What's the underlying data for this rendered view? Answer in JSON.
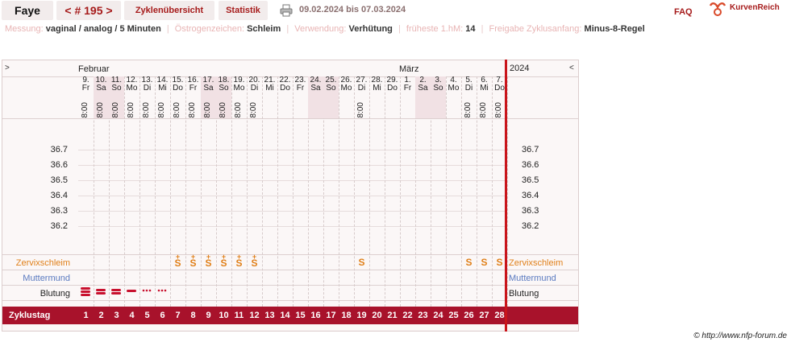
{
  "header": {
    "name": "Faye",
    "cycle_prev": "<",
    "cycle_label": "# 195",
    "cycle_next": ">",
    "menu": [
      "Zyklenübersicht",
      "Statistik"
    ],
    "date_range": "09.02.2024 bis 07.03.2024",
    "faq": "FAQ",
    "logo_text": "KurvenReich"
  },
  "settings": [
    {
      "label": "Messung:",
      "value": "vaginal / analog / 5 Minuten"
    },
    {
      "label": "Östrogenzeichen:",
      "value": "Schleim"
    },
    {
      "label": "Verwendung:",
      "value": "Verhütung"
    },
    {
      "label": "früheste 1.hM:",
      "value": "14"
    },
    {
      "label": "Freigabe Zyklusanfang:",
      "value": "Minus-8-Regel"
    }
  ],
  "chart": {
    "nav_left": ">",
    "nav_right": "<",
    "month1": "Februar",
    "month2": "März",
    "year": "2024",
    "time": "8:00",
    "days": [
      {
        "d": "9.",
        "w": "Fr",
        "we": false,
        "t": true
      },
      {
        "d": "10.",
        "w": "Sa",
        "we": true,
        "t": true
      },
      {
        "d": "11.",
        "w": "So",
        "we": true,
        "t": true
      },
      {
        "d": "12.",
        "w": "Mo",
        "we": false,
        "t": true
      },
      {
        "d": "13.",
        "w": "Di",
        "we": false,
        "t": true
      },
      {
        "d": "14.",
        "w": "Mi",
        "we": false,
        "t": true
      },
      {
        "d": "15.",
        "w": "Do",
        "we": false,
        "t": true
      },
      {
        "d": "16.",
        "w": "Fr",
        "we": false,
        "t": true
      },
      {
        "d": "17.",
        "w": "Sa",
        "we": true,
        "t": true
      },
      {
        "d": "18.",
        "w": "So",
        "we": true,
        "t": true
      },
      {
        "d": "19.",
        "w": "Mo",
        "we": false,
        "t": true
      },
      {
        "d": "20.",
        "w": "Di",
        "we": false,
        "t": true
      },
      {
        "d": "21.",
        "w": "Mi",
        "we": false,
        "t": false
      },
      {
        "d": "22.",
        "w": "Do",
        "we": false,
        "t": false
      },
      {
        "d": "23.",
        "w": "Fr",
        "we": false,
        "t": false
      },
      {
        "d": "24.",
        "w": "Sa",
        "we": true,
        "t": false
      },
      {
        "d": "25.",
        "w": "So",
        "we": true,
        "t": false
      },
      {
        "d": "26.",
        "w": "Mo",
        "we": false,
        "t": false
      },
      {
        "d": "27.",
        "w": "Di",
        "we": false,
        "t": true
      },
      {
        "d": "28.",
        "w": "Mi",
        "we": false,
        "t": false
      },
      {
        "d": "29.",
        "w": "Do",
        "we": false,
        "t": false
      },
      {
        "d": "1.",
        "w": "Fr",
        "we": false,
        "t": false
      },
      {
        "d": "2.",
        "w": "Sa",
        "we": true,
        "t": false
      },
      {
        "d": "3.",
        "w": "So",
        "we": true,
        "t": false
      },
      {
        "d": "4.",
        "w": "Mo",
        "we": false,
        "t": false
      },
      {
        "d": "5.",
        "w": "Di",
        "we": false,
        "t": true
      },
      {
        "d": "6.",
        "w": "Mi",
        "we": false,
        "t": true
      },
      {
        "d": "7.",
        "w": "Do",
        "we": false,
        "t": true
      }
    ],
    "temps": [
      "36.7",
      "36.6",
      "36.5",
      "36.4",
      "36.3",
      "36.2"
    ],
    "rows": {
      "zervix": "Zervixschleim",
      "mutter": "Muttermund",
      "blutung": "Blutung",
      "zyklustag": "Zyklustag"
    },
    "zervix_marks": [
      {
        "day": 7,
        "sym": "S",
        "plus": true
      },
      {
        "day": 8,
        "sym": "S",
        "plus": true
      },
      {
        "day": 9,
        "sym": "S",
        "plus": true
      },
      {
        "day": 10,
        "sym": "S",
        "plus": true
      },
      {
        "day": 11,
        "sym": "S",
        "plus": true
      },
      {
        "day": 12,
        "sym": "S",
        "plus": true
      },
      {
        "day": 19,
        "sym": "S",
        "plus": false
      },
      {
        "day": 26,
        "sym": "S",
        "plus": false
      },
      {
        "day": 27,
        "sym": "S",
        "plus": false
      },
      {
        "day": 28,
        "sym": "S",
        "plus": false
      }
    ],
    "bleeding": [
      {
        "day": 1,
        "level": "heavy"
      },
      {
        "day": 2,
        "level": "medium"
      },
      {
        "day": 3,
        "level": "medium"
      },
      {
        "day": 4,
        "level": "light"
      },
      {
        "day": 5,
        "level": "spotting"
      },
      {
        "day": 6,
        "level": "spotting"
      }
    ],
    "cycle_days": [
      "1",
      "2",
      "3",
      "4",
      "5",
      "6",
      "7",
      "8",
      "9",
      "10",
      "11",
      "12",
      "13",
      "14",
      "15",
      "16",
      "17",
      "18",
      "19",
      "20",
      "21",
      "22",
      "23",
      "24",
      "25",
      "26",
      "27",
      "28"
    ]
  },
  "footer": "© http://www.nfp-forum.de",
  "colors": {
    "accent": "#a8122b",
    "zervix": "#e0801a",
    "muttermund": "#5a7ac0",
    "today": "#c9151b",
    "weekend": "#f1e1e4"
  }
}
